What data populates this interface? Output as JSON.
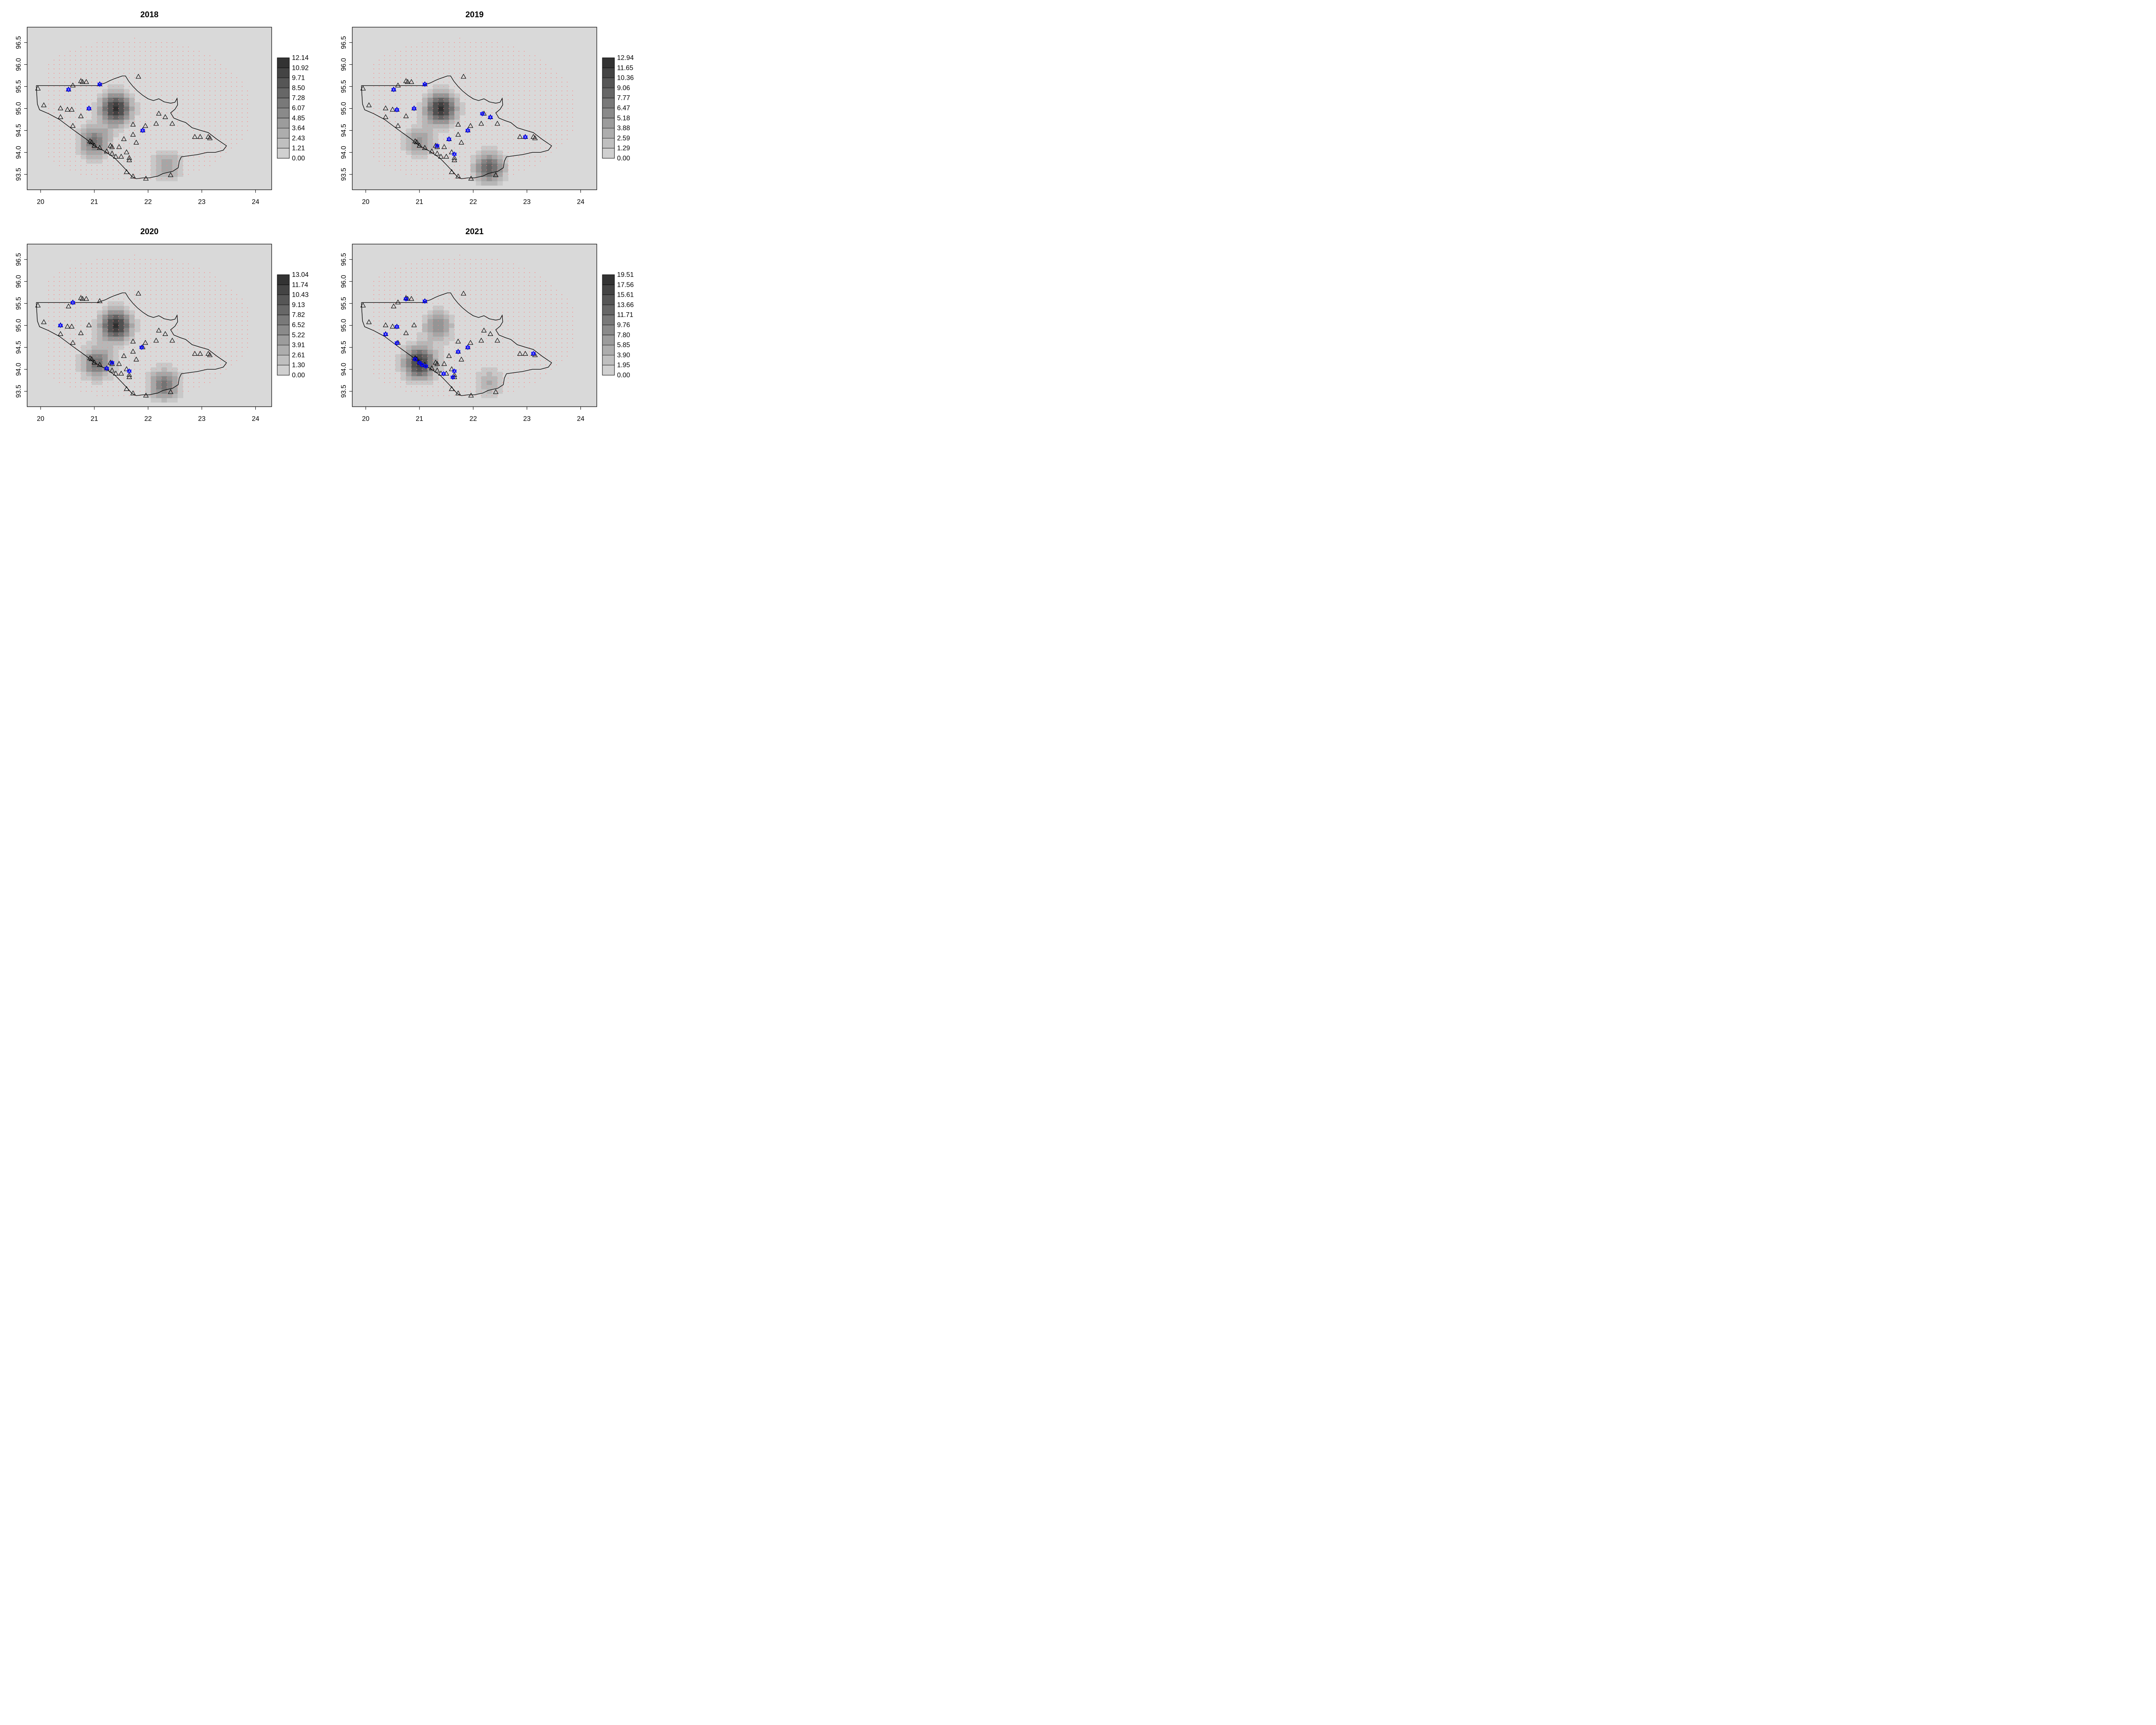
{
  "figure": {
    "background": "#ffffff",
    "plot_bg": "#d9d9d9",
    "site_color": "#0000ff",
    "grid_point_color": "#ff8080"
  },
  "chart_data": [
    {
      "type": "heatmap",
      "title": "2018",
      "xlabel": "",
      "ylabel": "",
      "xlim": [
        19.75,
        24.3
      ],
      "ylim": [
        93.15,
        96.85
      ],
      "xticks": [
        "20",
        "21",
        "22",
        "23",
        "24"
      ],
      "yticks": [
        "93.5",
        "94.0",
        "94.5",
        "95.0",
        "95.5",
        "96.0",
        "96.5"
      ],
      "legend_labels": [
        "12.14",
        "10.92",
        "9.71",
        "8.50",
        "7.28",
        "6.07",
        "4.85",
        "3.64",
        "2.43",
        "1.21",
        "0.00"
      ],
      "hotspots": [
        {
          "x": 21.4,
          "y": 95.0,
          "value": 12.14
        },
        {
          "x": 21.0,
          "y": 94.25,
          "value": 7.5
        },
        {
          "x": 22.35,
          "y": 93.7,
          "value": 4.5
        }
      ],
      "highlighted_sites": [
        [
          20.52,
          95.43
        ],
        [
          21.1,
          95.55
        ],
        [
          20.9,
          95.0
        ],
        [
          21.9,
          94.5
        ]
      ]
    },
    {
      "type": "heatmap",
      "title": "2019",
      "xlabel": "",
      "ylabel": "",
      "xlim": [
        19.75,
        24.3
      ],
      "ylim": [
        93.15,
        96.85
      ],
      "xticks": [
        "20",
        "21",
        "22",
        "23",
        "24"
      ],
      "yticks": [
        "93.5",
        "94.0",
        "94.5",
        "95.0",
        "95.5",
        "96.0",
        "96.5"
      ],
      "legend_labels": [
        "12.94",
        "11.65",
        "10.36",
        "9.06",
        "7.77",
        "6.47",
        "5.18",
        "3.88",
        "2.59",
        "1.29",
        "0.00"
      ],
      "hotspots": [
        {
          "x": 21.4,
          "y": 95.0,
          "value": 12.94
        },
        {
          "x": 21.0,
          "y": 94.25,
          "value": 5.5
        },
        {
          "x": 22.3,
          "y": 93.65,
          "value": 9.5
        }
      ],
      "highlighted_sites": [
        [
          20.52,
          95.43
        ],
        [
          21.1,
          95.55
        ],
        [
          20.58,
          94.97
        ],
        [
          20.9,
          95.0
        ],
        [
          22.17,
          94.88
        ],
        [
          22.32,
          94.8
        ],
        [
          21.9,
          94.5
        ],
        [
          21.55,
          94.3
        ],
        [
          21.33,
          94.15
        ],
        [
          21.65,
          93.96
        ],
        [
          22.97,
          94.35
        ]
      ]
    },
    {
      "type": "heatmap",
      "title": "2020",
      "xlabel": "",
      "ylabel": "",
      "xlim": [
        19.75,
        24.3
      ],
      "ylim": [
        93.15,
        96.85
      ],
      "xticks": [
        "20",
        "21",
        "22",
        "23",
        "24"
      ],
      "yticks": [
        "93.5",
        "94.0",
        "94.5",
        "95.0",
        "95.5",
        "96.0",
        "96.5"
      ],
      "legend_labels": [
        "13.04",
        "11.74",
        "10.43",
        "9.13",
        "7.82",
        "6.52",
        "5.22",
        "3.91",
        "2.61",
        "1.30",
        "0.00"
      ],
      "hotspots": [
        {
          "x": 21.4,
          "y": 95.0,
          "value": 13.04
        },
        {
          "x": 21.05,
          "y": 94.15,
          "value": 8.5
        },
        {
          "x": 22.3,
          "y": 93.65,
          "value": 8.0
        }
      ],
      "highlighted_sites": [
        [
          20.6,
          95.52
        ],
        [
          20.37,
          95.0
        ],
        [
          21.88,
          94.5
        ],
        [
          21.33,
          94.15
        ],
        [
          21.23,
          94.02
        ],
        [
          21.65,
          93.96
        ]
      ]
    },
    {
      "type": "heatmap",
      "title": "2021",
      "xlabel": "",
      "ylabel": "",
      "xlim": [
        19.75,
        24.3
      ],
      "ylim": [
        93.15,
        96.85
      ],
      "xticks": [
        "20",
        "21",
        "22",
        "23",
        "24"
      ],
      "yticks": [
        "93.5",
        "94.0",
        "94.5",
        "95.0",
        "95.5",
        "96.0",
        "96.5"
      ],
      "legend_labels": [
        "19.51",
        "17.56",
        "15.61",
        "13.66",
        "11.71",
        "9.76",
        "7.80",
        "5.85",
        "3.90",
        "1.95",
        "0.00"
      ],
      "hotspots": [
        {
          "x": 21.0,
          "y": 94.15,
          "value": 19.51
        },
        {
          "x": 21.35,
          "y": 95.0,
          "value": 9.0
        },
        {
          "x": 22.3,
          "y": 93.7,
          "value": 6.0
        }
      ],
      "highlighted_sites": [
        [
          20.75,
          95.6
        ],
        [
          21.1,
          95.55
        ],
        [
          20.58,
          94.97
        ],
        [
          20.37,
          94.8
        ],
        [
          20.58,
          94.6
        ],
        [
          21.9,
          94.5
        ],
        [
          21.72,
          94.4
        ],
        [
          20.92,
          94.23
        ],
        [
          21.0,
          94.15
        ],
        [
          21.05,
          94.1
        ],
        [
          21.12,
          94.07
        ],
        [
          21.45,
          93.9
        ],
        [
          21.65,
          93.96
        ],
        [
          21.62,
          93.82
        ],
        [
          23.12,
          94.36
        ]
      ]
    }
  ]
}
